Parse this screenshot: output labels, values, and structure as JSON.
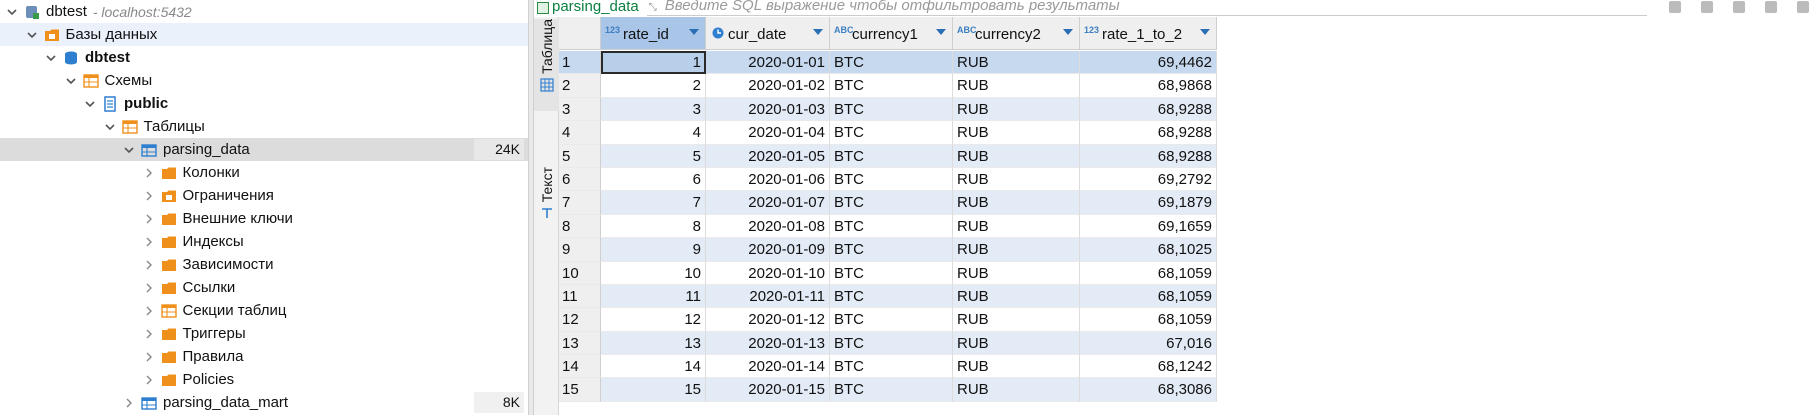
{
  "navigator": {
    "connection": {
      "name": "dbtest",
      "host": "- localhost:5432"
    },
    "items": [
      {
        "label": "Базы данных",
        "depth": 1,
        "icon": "database-folder-icon",
        "expanded": true,
        "bold": false
      },
      {
        "label": "dbtest",
        "depth": 2,
        "icon": "database-icon",
        "expanded": true,
        "bold": true
      },
      {
        "label": "Схемы",
        "depth": 3,
        "icon": "schemas-folder-icon",
        "expanded": true,
        "bold": false
      },
      {
        "label": "public",
        "depth": 4,
        "icon": "schema-icon",
        "expanded": true,
        "bold": true
      },
      {
        "label": "Таблицы",
        "depth": 5,
        "icon": "tables-folder-icon",
        "expanded": true,
        "bold": false
      },
      {
        "label": "parsing_data",
        "depth": 6,
        "icon": "table-icon",
        "expanded": true,
        "bold": false,
        "size": "24K"
      },
      {
        "label": "Колонки",
        "depth": 7,
        "icon": "columns-folder-icon",
        "expanded": false,
        "bold": false
      },
      {
        "label": "Ограничения",
        "depth": 7,
        "icon": "constraints-folder-icon",
        "expanded": false,
        "bold": false
      },
      {
        "label": "Внешние ключи",
        "depth": 7,
        "icon": "foreign-keys-folder-icon",
        "expanded": false,
        "bold": false
      },
      {
        "label": "Индексы",
        "depth": 7,
        "icon": "indexes-folder-icon",
        "expanded": false,
        "bold": false
      },
      {
        "label": "Зависимости",
        "depth": 7,
        "icon": "dependencies-folder-icon",
        "expanded": false,
        "bold": false
      },
      {
        "label": "Ссылки",
        "depth": 7,
        "icon": "references-folder-icon",
        "expanded": false,
        "bold": false
      },
      {
        "label": "Секции таблиц",
        "depth": 7,
        "icon": "partitions-folder-icon",
        "expanded": false,
        "bold": false
      },
      {
        "label": "Триггеры",
        "depth": 7,
        "icon": "triggers-folder-icon",
        "expanded": false,
        "bold": false
      },
      {
        "label": "Правила",
        "depth": 7,
        "icon": "rules-folder-icon",
        "expanded": false,
        "bold": false
      },
      {
        "label": "Policies",
        "depth": 7,
        "icon": "policies-folder-icon",
        "expanded": false,
        "bold": false
      },
      {
        "label": "parsing_data_mart",
        "depth": 6,
        "icon": "table-icon",
        "expanded": false,
        "bold": false,
        "size": "8K"
      }
    ]
  },
  "editor": {
    "tab_label": "parsing_data",
    "filter_placeholder": "Введите SQL выражение чтобы отфильтровать результаты",
    "vertical_tabs": {
      "table": "Таблица",
      "text": "Текст"
    },
    "columns": [
      {
        "name": "rate_id",
        "type": "123",
        "type_icon": "numeric-type-icon"
      },
      {
        "name": "cur_date",
        "type": "",
        "type_icon": "date-type-icon"
      },
      {
        "name": "currency1",
        "type": "ABC",
        "type_icon": "string-type-icon"
      },
      {
        "name": "currency2",
        "type": "ABC",
        "type_icon": "string-type-icon"
      },
      {
        "name": "rate_1_to_2",
        "type": "123",
        "type_icon": "numeric-type-icon"
      }
    ],
    "rows": [
      [
        "1",
        "1",
        "2020-01-01",
        "BTC",
        "RUB",
        "69,4462"
      ],
      [
        "2",
        "2",
        "2020-01-02",
        "BTC",
        "RUB",
        "68,9868"
      ],
      [
        "3",
        "3",
        "2020-01-03",
        "BTC",
        "RUB",
        "68,9288"
      ],
      [
        "4",
        "4",
        "2020-01-04",
        "BTC",
        "RUB",
        "68,9288"
      ],
      [
        "5",
        "5",
        "2020-01-05",
        "BTC",
        "RUB",
        "68,9288"
      ],
      [
        "6",
        "6",
        "2020-01-06",
        "BTC",
        "RUB",
        "69,2792"
      ],
      [
        "7",
        "7",
        "2020-01-07",
        "BTC",
        "RUB",
        "69,1879"
      ],
      [
        "8",
        "8",
        "2020-01-08",
        "BTC",
        "RUB",
        "69,1659"
      ],
      [
        "9",
        "9",
        "2020-01-09",
        "BTC",
        "RUB",
        "68,1025"
      ],
      [
        "10",
        "10",
        "2020-01-10",
        "BTC",
        "RUB",
        "68,1059"
      ],
      [
        "11",
        "11",
        "2020-01-11",
        "BTC",
        "RUB",
        "68,1059"
      ],
      [
        "12",
        "12",
        "2020-01-12",
        "BTC",
        "RUB",
        "68,1059"
      ],
      [
        "13",
        "13",
        "2020-01-13",
        "BTC",
        "RUB",
        "67,016"
      ],
      [
        "14",
        "14",
        "2020-01-14",
        "BTC",
        "RUB",
        "68,1242"
      ],
      [
        "15",
        "15",
        "2020-01-15",
        "BTC",
        "RUB",
        "68,3086"
      ]
    ]
  },
  "colors": {
    "folder": "#f0901c",
    "table_icon": "#2f7fd0",
    "selection": "#dcdcdc",
    "header_selected": "#a9c6e8",
    "row_alt": "#e3ebf6"
  }
}
